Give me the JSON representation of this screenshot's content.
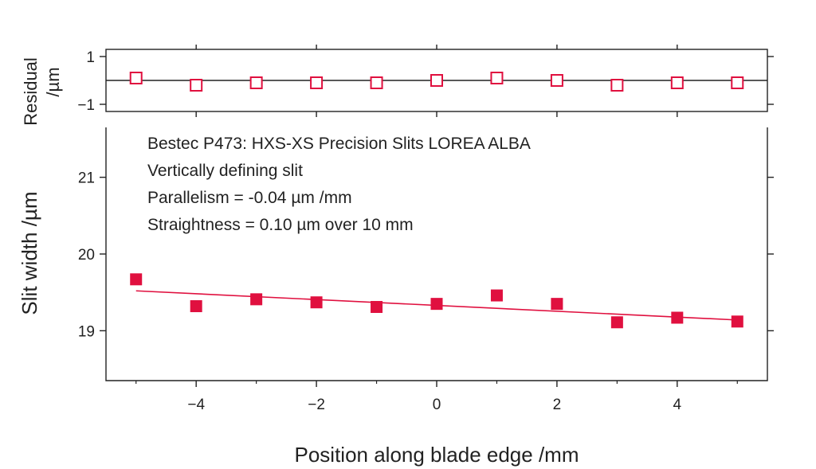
{
  "chart_data": [
    {
      "type": "scatter",
      "panel": "main",
      "xlabel": "Position along blade edge /mm",
      "ylabel": "Slit width /µm",
      "x_ticks": [
        "-4",
        "-2",
        "0",
        "2",
        "4"
      ],
      "y_ticks": [
        "19",
        "20",
        "21"
      ],
      "xlim": [
        -5.5,
        5.5
      ],
      "ylim": [
        18.35,
        21.65
      ],
      "grid": false,
      "marker_color": "#e0103f",
      "annotations": [
        "Bestec P473: HXS-XS Precision Slits LOREA ALBA",
        "Vertically defining slit",
        "Parallelism =  -0.04 µm /mm",
        "Straightness = 0.10 µm over 10 mm"
      ],
      "series": [
        {
          "type": "scatter",
          "marker": "filled-square",
          "x": [
            -5,
            -4,
            -3,
            -2,
            -1,
            0,
            1,
            2,
            3,
            4,
            5
          ],
          "y": [
            19.67,
            19.32,
            19.41,
            19.37,
            19.31,
            19.35,
            19.46,
            19.35,
            19.11,
            19.17,
            19.12
          ]
        },
        {
          "type": "line",
          "x": [
            -5,
            5
          ],
          "y": [
            19.52,
            19.14
          ]
        }
      ]
    },
    {
      "type": "scatter",
      "panel": "residual",
      "xlabel": "",
      "ylabel": "Residual\n/µm",
      "ylabel_lines": [
        "Residual",
        "/µm"
      ],
      "y_ticks": [
        "1",
        "-1"
      ],
      "ylim": [
        -1.3,
        1.3
      ],
      "grid": false,
      "marker_color": "#e0103f",
      "series": [
        {
          "type": "scatter",
          "marker": "open-square",
          "x": [
            -5,
            -4,
            -3,
            -2,
            -1,
            0,
            1,
            2,
            3,
            4,
            5
          ],
          "y": [
            0.1,
            -0.2,
            -0.1,
            -0.1,
            -0.1,
            0.0,
            0.1,
            0.0,
            -0.2,
            -0.1,
            -0.1
          ]
        },
        {
          "type": "line",
          "x": [
            -5.5,
            5.5
          ],
          "y": [
            0,
            0
          ]
        }
      ]
    }
  ]
}
